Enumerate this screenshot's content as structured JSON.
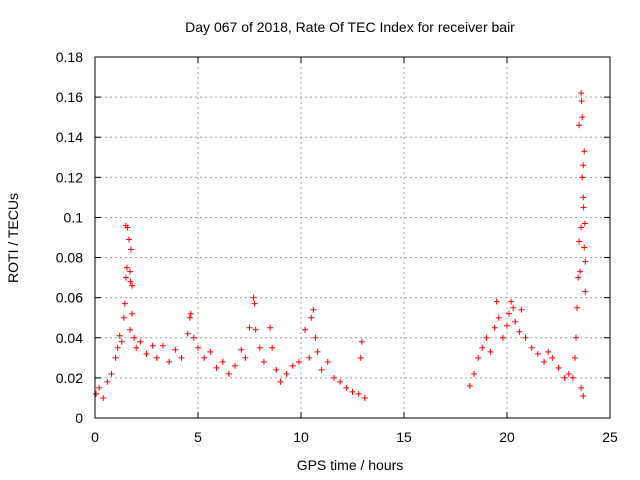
{
  "chart_data": {
    "type": "scatter",
    "title": "Day 067 of 2018, Rate Of TEC Index for receiver bair",
    "xlabel": "GPS time / hours",
    "ylabel": "ROTI / TECUs",
    "xlim": [
      0,
      25
    ],
    "ylim": [
      0,
      0.18
    ],
    "x_ticks": [
      0,
      5,
      10,
      15,
      20,
      25
    ],
    "x_tick_labels": [
      "0",
      "5",
      "10",
      "15",
      "20",
      "25"
    ],
    "y_ticks": [
      0,
      0.02,
      0.04,
      0.06,
      0.08,
      0.1,
      0.12,
      0.14,
      0.16,
      0.18
    ],
    "y_tick_labels": [
      "0",
      "0.02",
      "0.04",
      "0.06",
      "0.08",
      "0.1",
      "0.12",
      "0.14",
      "0.16",
      "0.18"
    ],
    "grid": true,
    "marker": "+",
    "color": "#ff0000",
    "series": [
      {
        "name": "ROTI",
        "points": [
          [
            0.05,
            0.012
          ],
          [
            0.2,
            0.015
          ],
          [
            0.4,
            0.01
          ],
          [
            0.6,
            0.018
          ],
          [
            0.8,
            0.022
          ],
          [
            1.0,
            0.03
          ],
          [
            1.1,
            0.035
          ],
          [
            1.2,
            0.041
          ],
          [
            1.3,
            0.038
          ],
          [
            1.4,
            0.05
          ],
          [
            1.45,
            0.057
          ],
          [
            1.5,
            0.07
          ],
          [
            1.55,
            0.075
          ],
          [
            1.5,
            0.096
          ],
          [
            1.58,
            0.095
          ],
          [
            1.65,
            0.089
          ],
          [
            1.7,
            0.073
          ],
          [
            1.72,
            0.068
          ],
          [
            1.75,
            0.084
          ],
          [
            1.8,
            0.066
          ],
          [
            1.8,
            0.052
          ],
          [
            1.7,
            0.044
          ],
          [
            1.9,
            0.04
          ],
          [
            2.0,
            0.035
          ],
          [
            2.2,
            0.038
          ],
          [
            2.5,
            0.032
          ],
          [
            2.8,
            0.036
          ],
          [
            3.0,
            0.03
          ],
          [
            3.3,
            0.036
          ],
          [
            3.6,
            0.028
          ],
          [
            3.9,
            0.034
          ],
          [
            4.2,
            0.03
          ],
          [
            4.5,
            0.042
          ],
          [
            4.6,
            0.05
          ],
          [
            4.65,
            0.052
          ],
          [
            4.8,
            0.04
          ],
          [
            5.0,
            0.035
          ],
          [
            5.3,
            0.03
          ],
          [
            5.6,
            0.033
          ],
          [
            5.9,
            0.025
          ],
          [
            6.2,
            0.028
          ],
          [
            6.5,
            0.022
          ],
          [
            6.8,
            0.026
          ],
          [
            7.1,
            0.034
          ],
          [
            7.3,
            0.03
          ],
          [
            7.5,
            0.045
          ],
          [
            7.7,
            0.06
          ],
          [
            7.75,
            0.057
          ],
          [
            7.8,
            0.044
          ],
          [
            8.0,
            0.035
          ],
          [
            8.2,
            0.028
          ],
          [
            8.5,
            0.045
          ],
          [
            8.6,
            0.035
          ],
          [
            8.8,
            0.024
          ],
          [
            9.0,
            0.018
          ],
          [
            9.3,
            0.022
          ],
          [
            9.6,
            0.026
          ],
          [
            9.9,
            0.028
          ],
          [
            10.2,
            0.044
          ],
          [
            10.4,
            0.03
          ],
          [
            10.5,
            0.05
          ],
          [
            10.6,
            0.054
          ],
          [
            10.7,
            0.04
          ],
          [
            10.8,
            0.033
          ],
          [
            11.0,
            0.024
          ],
          [
            11.3,
            0.028
          ],
          [
            11.6,
            0.02
          ],
          [
            11.9,
            0.018
          ],
          [
            12.2,
            0.015
          ],
          [
            12.5,
            0.013
          ],
          [
            12.8,
            0.012
          ],
          [
            12.9,
            0.03
          ],
          [
            12.95,
            0.038
          ],
          [
            13.1,
            0.01
          ],
          [
            18.2,
            0.016
          ],
          [
            18.4,
            0.022
          ],
          [
            18.6,
            0.03
          ],
          [
            18.8,
            0.035
          ],
          [
            19.0,
            0.04
          ],
          [
            19.2,
            0.033
          ],
          [
            19.4,
            0.045
          ],
          [
            19.5,
            0.058
          ],
          [
            19.6,
            0.05
          ],
          [
            19.8,
            0.04
          ],
          [
            20.0,
            0.046
          ],
          [
            20.1,
            0.052
          ],
          [
            20.2,
            0.058
          ],
          [
            20.3,
            0.055
          ],
          [
            20.4,
            0.048
          ],
          [
            20.6,
            0.043
          ],
          [
            20.7,
            0.054
          ],
          [
            20.9,
            0.04
          ],
          [
            21.2,
            0.035
          ],
          [
            21.5,
            0.032
          ],
          [
            21.8,
            0.028
          ],
          [
            22.0,
            0.033
          ],
          [
            22.2,
            0.03
          ],
          [
            22.5,
            0.025
          ],
          [
            22.8,
            0.02
          ],
          [
            23.0,
            0.022
          ],
          [
            23.2,
            0.02
          ],
          [
            23.3,
            0.03
          ],
          [
            23.35,
            0.04
          ],
          [
            23.4,
            0.055
          ],
          [
            23.45,
            0.07
          ],
          [
            23.5,
            0.088
          ],
          [
            23.5,
            0.146
          ],
          [
            23.55,
            0.073
          ],
          [
            23.6,
            0.095
          ],
          [
            23.6,
            0.162
          ],
          [
            23.62,
            0.158
          ],
          [
            23.65,
            0.15
          ],
          [
            23.65,
            0.12
          ],
          [
            23.7,
            0.126
          ],
          [
            23.7,
            0.11
          ],
          [
            23.72,
            0.105
          ],
          [
            23.75,
            0.133
          ],
          [
            23.75,
            0.085
          ],
          [
            23.78,
            0.097
          ],
          [
            23.8,
            0.063
          ],
          [
            23.8,
            0.078
          ],
          [
            23.6,
            0.015
          ],
          [
            23.7,
            0.011
          ]
        ]
      }
    ]
  }
}
